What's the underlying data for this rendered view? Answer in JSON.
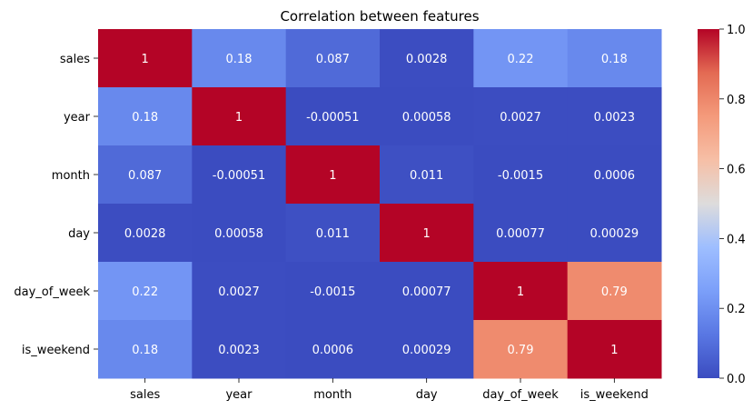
{
  "chart_data": {
    "type": "heatmap",
    "title": "Correlation between features",
    "xlabel": "",
    "ylabel": "",
    "x_categories": [
      "sales",
      "year",
      "month",
      "day",
      "day_of_week",
      "is_weekend"
    ],
    "y_categories": [
      "sales",
      "year",
      "month",
      "day",
      "day_of_week",
      "is_weekend"
    ],
    "values": [
      [
        1,
        0.18,
        0.087,
        0.0028,
        0.22,
        0.18
      ],
      [
        0.18,
        1,
        -0.00051,
        0.00058,
        0.0027,
        0.0023
      ],
      [
        0.087,
        -0.00051,
        1,
        0.011,
        -0.0015,
        0.0006
      ],
      [
        0.0028,
        0.00058,
        0.011,
        1,
        0.00077,
        0.00029
      ],
      [
        0.22,
        0.0027,
        -0.0015,
        0.00077,
        1,
        0.79
      ],
      [
        0.18,
        0.0023,
        0.0006,
        0.00029,
        0.79,
        1
      ]
    ],
    "value_labels": [
      [
        "1",
        "0.18",
        "0.087",
        "0.0028",
        "0.22",
        "0.18"
      ],
      [
        "0.18",
        "1",
        "-0.00051",
        "0.00058",
        "0.0027",
        "0.0023"
      ],
      [
        "0.087",
        "-0.00051",
        "1",
        "0.011",
        "-0.0015",
        "0.0006"
      ],
      [
        "0.0028",
        "0.00058",
        "0.011",
        "1",
        "0.00077",
        "0.00029"
      ],
      [
        "0.22",
        "0.0027",
        "-0.0015",
        "0.00077",
        "1",
        "0.79"
      ],
      [
        "0.18",
        "0.0023",
        "0.0006",
        "0.00029",
        "0.79",
        "1"
      ]
    ],
    "colormap": "coolwarm",
    "colorbar": {
      "range": [
        0,
        1
      ],
      "ticks": [
        0.0,
        0.2,
        0.4,
        0.6,
        0.8,
        1.0
      ],
      "tick_labels": [
        "0.0",
        "0.2",
        "0.4",
        "0.6",
        "0.8",
        "1.0"
      ],
      "placement": "right"
    },
    "grid": false
  }
}
